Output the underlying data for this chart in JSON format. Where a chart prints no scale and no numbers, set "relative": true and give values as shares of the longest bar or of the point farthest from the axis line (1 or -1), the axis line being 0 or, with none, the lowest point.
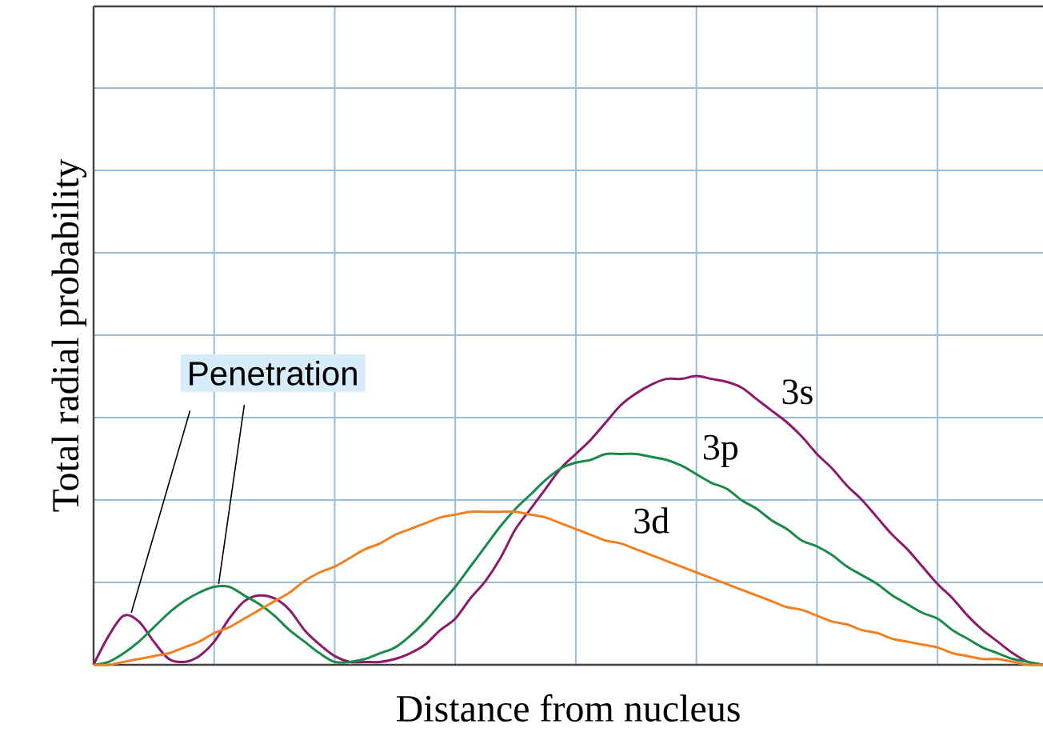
{
  "chart_data": {
    "type": "line",
    "relative": true,
    "grid": true,
    "xlabel": "Distance from nucleus",
    "ylabel": "Total radial probability",
    "annotations": [
      "Penetration"
    ],
    "categories": [
      null,
      null,
      null,
      null,
      null,
      null,
      null,
      null,
      null,
      null,
      null,
      null,
      null,
      null,
      null,
      null,
      null,
      null,
      null,
      null,
      null,
      null,
      null,
      null,
      null,
      null,
      null,
      null,
      null,
      null,
      null,
      null,
      null,
      null,
      null,
      null,
      null,
      null,
      null,
      null,
      null,
      null,
      null,
      null,
      null,
      null,
      null,
      null,
      null,
      null,
      null,
      null,
      null,
      null,
      null,
      null,
      null,
      null,
      null,
      null,
      null,
      null,
      null,
      null
    ],
    "series": [
      {
        "name": "3s",
        "color": "#8b1a6b",
        "values": [
          0,
          0.1,
          0.17,
          0.15,
          0.08,
          0.02,
          0.01,
          0.03,
          0.08,
          0.16,
          0.22,
          0.24,
          0.23,
          0.19,
          0.12,
          0.07,
          0.03,
          0.01,
          0.01,
          0.01,
          0.02,
          0.04,
          0.07,
          0.12,
          0.16,
          0.23,
          0.29,
          0.37,
          0.47,
          0.54,
          0.61,
          0.68,
          0.73,
          0.78,
          0.84,
          0.9,
          0.94,
          0.97,
          0.99,
          0.99,
          1,
          0.99,
          0.98,
          0.96,
          0.92,
          0.88,
          0.84,
          0.79,
          0.73,
          0.68,
          0.62,
          0.57,
          0.51,
          0.45,
          0.4,
          0.34,
          0.28,
          0.23,
          0.17,
          0.12,
          0.08,
          0.04,
          0.01,
          0
        ]
      },
      {
        "name": "3p",
        "color": "#1a8a4a",
        "values": [
          0,
          0.01,
          0.04,
          0.08,
          0.13,
          0.18,
          0.22,
          0.25,
          0.27,
          0.27,
          0.24,
          0.21,
          0.17,
          0.12,
          0.08,
          0.04,
          0.01,
          0.01,
          0.02,
          0.04,
          0.06,
          0.1,
          0.15,
          0.21,
          0.27,
          0.34,
          0.41,
          0.48,
          0.54,
          0.59,
          0.64,
          0.68,
          0.7,
          0.71,
          0.73,
          0.73,
          0.73,
          0.72,
          0.71,
          0.69,
          0.66,
          0.63,
          0.61,
          0.57,
          0.54,
          0.5,
          0.47,
          0.43,
          0.41,
          0.38,
          0.34,
          0.31,
          0.28,
          0.24,
          0.21,
          0.18,
          0.16,
          0.12,
          0.09,
          0.06,
          0.04,
          0.02,
          0.01,
          0
        ]
      },
      {
        "name": "3d",
        "color": "#f08020",
        "values": [
          0,
          0.0,
          0.01,
          0.02,
          0.03,
          0.04,
          0.06,
          0.08,
          0.11,
          0.13,
          0.16,
          0.19,
          0.22,
          0.25,
          0.29,
          0.32,
          0.34,
          0.37,
          0.4,
          0.42,
          0.45,
          0.47,
          0.49,
          0.51,
          0.52,
          0.53,
          0.53,
          0.53,
          0.53,
          0.52,
          0.51,
          0.49,
          0.47,
          0.45,
          0.43,
          0.42,
          0.4,
          0.38,
          0.36,
          0.34,
          0.32,
          0.3,
          0.28,
          0.26,
          0.24,
          0.22,
          0.2,
          0.19,
          0.17,
          0.15,
          0.14,
          0.12,
          0.11,
          0.09,
          0.08,
          0.07,
          0.06,
          0.04,
          0.03,
          0.02,
          0.02,
          0.01,
          0.0,
          0
        ]
      }
    ]
  }
}
